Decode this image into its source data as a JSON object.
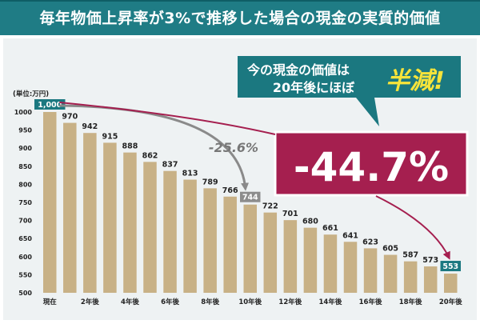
{
  "chart_data": {
    "type": "bar",
    "title": "毎年物価上昇率が3%で推移した場合の現金の実質的価値",
    "unit_label": "(単位:万円)",
    "categories": [
      "現在",
      "",
      "2年後",
      "",
      "4年後",
      "",
      "6年後",
      "",
      "8年後",
      "",
      "10年後",
      "",
      "12年後",
      "",
      "14年後",
      "",
      "16年後",
      "",
      "18年後",
      "",
      "20年後"
    ],
    "values": [
      1000,
      970,
      942,
      915,
      888,
      862,
      837,
      813,
      789,
      766,
      744,
      722,
      701,
      680,
      661,
      641,
      623,
      605,
      587,
      573,
      553
    ],
    "value_labels": [
      "1,000",
      "970",
      "942",
      "915",
      "888",
      "862",
      "837",
      "813",
      "789",
      "766",
      "744",
      "722",
      "701",
      "680",
      "661",
      "641",
      "623",
      "605",
      "587",
      "573",
      "553"
    ],
    "highlighted_indices": [
      0,
      10,
      20
    ],
    "yticks": [
      500,
      550,
      600,
      650,
      700,
      750,
      800,
      850,
      900,
      950,
      1000
    ],
    "ylim": [
      500,
      1000
    ],
    "grid": false,
    "annotations": [
      {
        "text": "-25.6%",
        "from_index": 0,
        "to_index": 10
      },
      {
        "text": "-44.7%",
        "from_index": 0,
        "to_index": 20
      }
    ],
    "callout": {
      "line1": "今の現金の価値は",
      "line2": "20年後にほぼ",
      "highlight": "半減!"
    },
    "colors": {
      "bar": "#c8b186",
      "highlight": "#1b7880",
      "highlight_gray": "#8c8c8c",
      "header": "#1f7c85",
      "callout": "#1b7880",
      "callout_highlight": "#f7e43a",
      "big_box": "#a51f4f",
      "arrow_gray": "#8a8a8a",
      "arrow_red": "#a51f4f"
    }
  }
}
